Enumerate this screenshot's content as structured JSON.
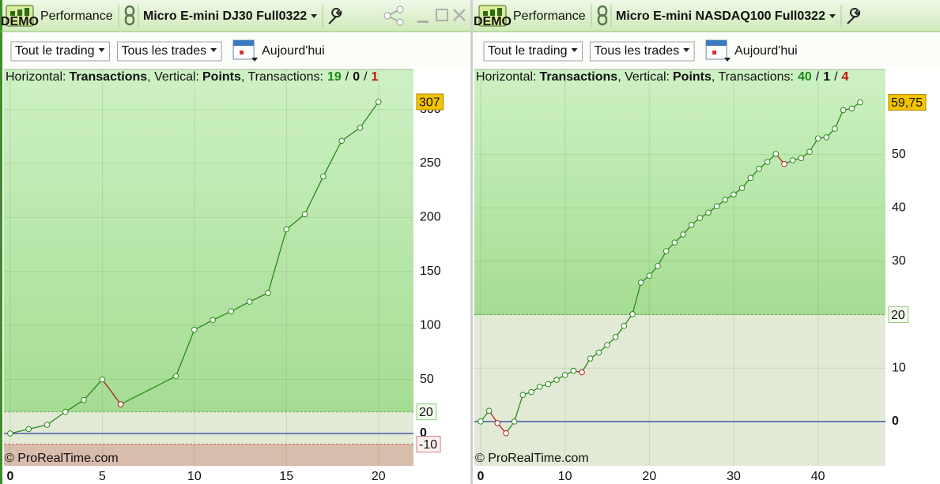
{
  "windows": [
    {
      "demo": "DEMO",
      "tab": "Performance",
      "title": "Micro E-mini DJ30 Full0322",
      "filter_1": "Tout le trading",
      "filter_2": "Tous les trades",
      "date": "Aujourd'hui"
    },
    {
      "demo": "DEMO",
      "tab": "Performance",
      "title": "Micro E-mini NASDAQ100 Full0322",
      "filter_1": "Tout le trading",
      "filter_2": "Tous les trades",
      "date": "Aujourd'hui"
    }
  ],
  "chart_data": [
    {
      "type": "line",
      "horizontal_label": "Horizontal:",
      "horizontal": "Transactions",
      "vertical_label": ", Vertical:",
      "vertical": "Points",
      "count_label": ", Transactions:",
      "wins": 19,
      "neutral": 0,
      "losses": 1,
      "separator": "/",
      "x": [
        0,
        1,
        2,
        3,
        4,
        5,
        6,
        9,
        10,
        11,
        12,
        13,
        14,
        15,
        16,
        17,
        18,
        19,
        20
      ],
      "values": [
        0,
        4,
        8,
        20,
        31,
        50,
        27,
        53,
        96,
        105,
        113,
        122,
        130,
        189,
        203,
        238,
        271,
        283,
        307
      ],
      "color": "#2a8a1a",
      "down_color": "#b02020",
      "xlim": [
        -0.34,
        21.9
      ],
      "ylim": [
        -30,
        337
      ],
      "xticks": [
        0,
        5,
        10,
        15,
        20
      ],
      "yticks": [
        0,
        50,
        100,
        150,
        200,
        250,
        300
      ],
      "upper_threshold": 20,
      "lower_threshold": -10,
      "grid": true,
      "watermark": "© ProRealTime.com"
    },
    {
      "type": "line",
      "horizontal_label": "Horizontal:",
      "horizontal": "Transactions",
      "vertical_label": ", Vertical:",
      "vertical": "Points",
      "count_label": ", Transactions:",
      "wins": 40,
      "neutral": 1,
      "losses": 4,
      "separator": "/",
      "x": [
        0,
        1,
        2,
        3,
        4,
        5,
        6,
        7,
        8,
        9,
        10,
        11,
        12,
        13,
        14,
        15,
        16,
        17,
        18,
        19,
        20,
        21,
        22,
        23,
        24,
        25,
        26,
        27,
        28,
        29,
        30,
        31,
        32,
        33,
        34,
        35,
        36,
        37,
        38,
        39,
        40,
        41,
        42,
        43,
        44,
        45
      ],
      "values": [
        0,
        2,
        -0.3,
        -2.2,
        0,
        5,
        5.5,
        6.5,
        7,
        7.8,
        8.7,
        9.5,
        9.2,
        11.8,
        12.9,
        14.3,
        15.8,
        17.9,
        20.1,
        26,
        27.3,
        29.1,
        31.9,
        33.5,
        35,
        36.8,
        38.1,
        39.1,
        40.3,
        41.5,
        42.5,
        43.7,
        45.6,
        47.3,
        48.6,
        50.1,
        48.2,
        48.9,
        49.3,
        50.5,
        53,
        53.2,
        54.8,
        58.3,
        58.6,
        59.75
      ],
      "value_labels": [
        null,
        null,
        null,
        null,
        null,
        null,
        null,
        null,
        null,
        null,
        null,
        null,
        null,
        null,
        null,
        null,
        null,
        null,
        null,
        null,
        null,
        null,
        null,
        null,
        null,
        null,
        null,
        null,
        null,
        null,
        null,
        null,
        null,
        null,
        null,
        null,
        null,
        null,
        null,
        null,
        null,
        null,
        null,
        null,
        null,
        "59,75"
      ],
      "color": "#2a8a1a",
      "down_color": "#b02020",
      "xlim": [
        -0.75,
        48
      ],
      "ylim": [
        -8.3,
        65.9
      ],
      "xticks": [
        0,
        10,
        20,
        30,
        40
      ],
      "yticks": [
        0,
        10,
        20,
        30,
        40,
        50
      ],
      "upper_threshold": 20,
      "grid": true,
      "watermark": "© ProRealTime.com"
    }
  ]
}
